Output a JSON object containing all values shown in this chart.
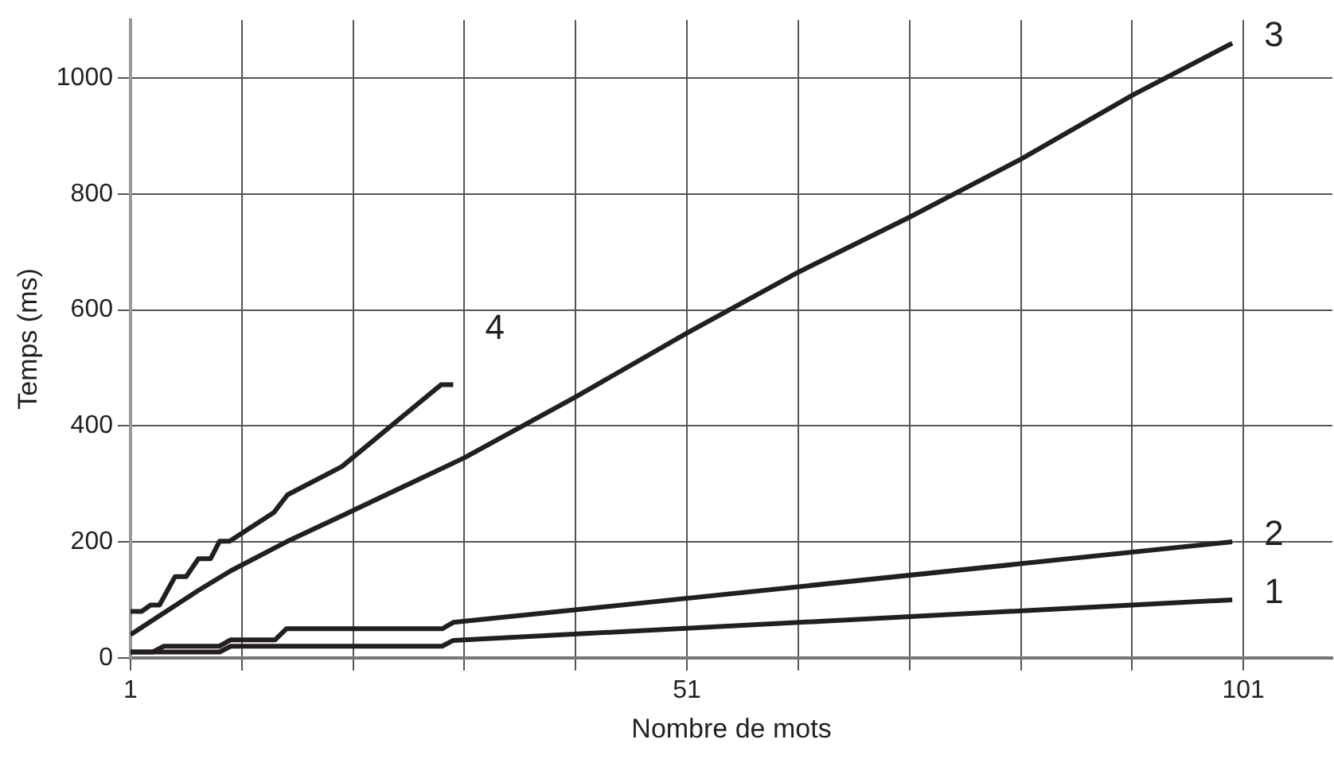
{
  "chart_data": {
    "type": "line",
    "xlabel": "Nombre de mots",
    "ylabel": "Temps (ms)",
    "xlim": [
      1,
      109
    ],
    "ylim": [
      0,
      1100
    ],
    "xticks": [
      1,
      {
        "value": 11,
        "label": null
      },
      {
        "value": 21,
        "label": null
      },
      {
        "value": 31,
        "label": null
      },
      {
        "value": 41,
        "label": null
      },
      51,
      {
        "value": 61,
        "label": null
      },
      {
        "value": 71,
        "label": null
      },
      {
        "value": 81,
        "label": null
      },
      {
        "value": 91,
        "label": null
      },
      101
    ],
    "yticks": [
      0,
      200,
      400,
      600,
      800,
      1000
    ],
    "grid": true,
    "legend": false,
    "marker": "none",
    "line_style": "solid",
    "series": [
      {
        "name": "1",
        "color": "#231f20",
        "x": [
          1,
          9,
          10,
          29,
          30,
          100
        ],
        "values": [
          10,
          10,
          20,
          20,
          30,
          100
        ]
      },
      {
        "name": "2",
        "color": "#231f20",
        "x": [
          1,
          3,
          4,
          9,
          10,
          14,
          15,
          29,
          30,
          100
        ],
        "values": [
          10,
          10,
          20,
          20,
          31,
          31,
          50,
          50,
          61,
          200
        ]
      },
      {
        "name": "3",
        "color": "#231f20",
        "x": [
          1,
          5,
          7,
          10,
          15,
          20,
          31,
          41,
          51,
          61,
          71,
          81,
          91,
          100
        ],
        "values": [
          40,
          90,
          115,
          150,
          200,
          245,
          345,
          450,
          560,
          665,
          760,
          860,
          970,
          1060
        ]
      },
      {
        "name": "4",
        "color": "#231f20",
        "x": [
          1,
          2,
          2.8,
          3.6,
          5,
          6,
          7.1,
          8.2,
          9,
          9.9,
          13.9,
          15.1,
          20,
          28.9,
          30
        ],
        "values": [
          80,
          80,
          91,
          91,
          140,
          140,
          171,
          171,
          201,
          201,
          251,
          281,
          330,
          471,
          471
        ]
      }
    ]
  }
}
